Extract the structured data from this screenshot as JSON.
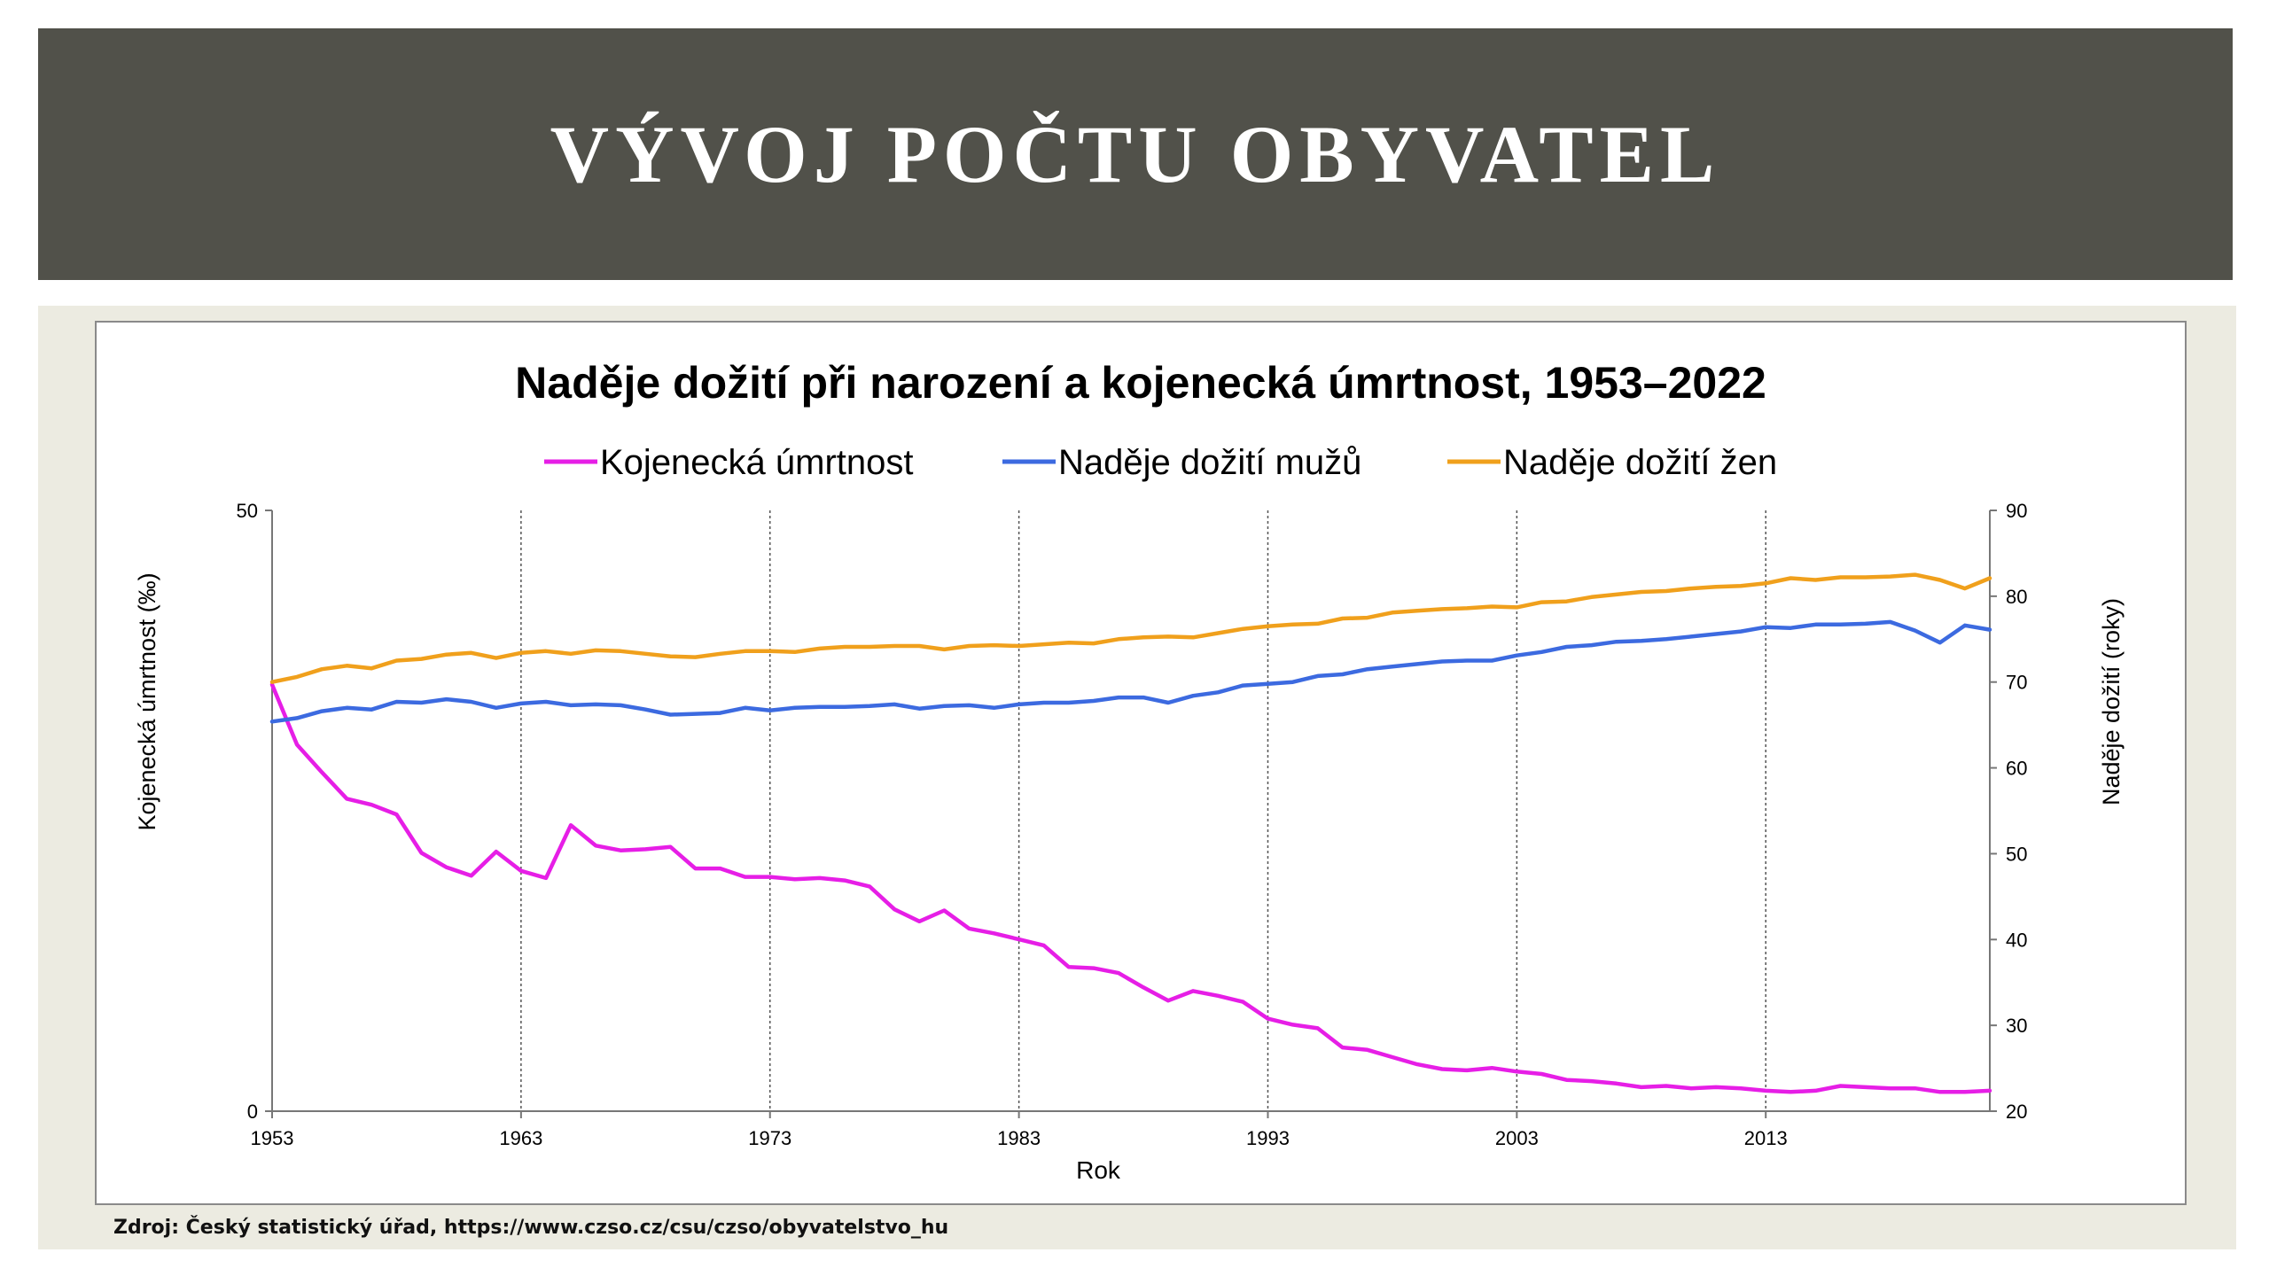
{
  "slide": {
    "title": "VÝVOJ POČTU OBYVATEL",
    "source": "Zdroj: Český statistický úřad, https://www.czso.cz/csu/czso/obyvatelstvo_hu"
  },
  "chart_data": {
    "type": "line",
    "title": "Naděje dožití při narození a kojenecká úmrtnost, 1953–2022",
    "xlabel": "Rok",
    "ylabel_left": "Kojenecká úmrtnost (‰)",
    "ylabel_right": "Naděje dožití (roky)",
    "xlim": [
      1953,
      2022
    ],
    "ylim_left": [
      0,
      50
    ],
    "ylim_right": [
      20,
      90
    ],
    "x_ticks": [
      1953,
      1963,
      1973,
      1983,
      1993,
      2003,
      2013
    ],
    "y_left_ticks": [
      0,
      50
    ],
    "y_right_ticks": [
      20,
      30,
      40,
      50,
      60,
      70,
      80,
      90
    ],
    "vertical_gridlines": [
      1963,
      1973,
      1983,
      1993,
      2003,
      2013
    ],
    "legend_position": "top",
    "x": [
      1953,
      1954,
      1955,
      1956,
      1957,
      1958,
      1959,
      1960,
      1961,
      1962,
      1963,
      1964,
      1965,
      1966,
      1967,
      1968,
      1969,
      1970,
      1971,
      1972,
      1973,
      1974,
      1975,
      1976,
      1977,
      1978,
      1979,
      1980,
      1981,
      1982,
      1983,
      1984,
      1985,
      1986,
      1987,
      1988,
      1989,
      1990,
      1991,
      1992,
      1993,
      1994,
      1995,
      1996,
      1997,
      1998,
      1999,
      2000,
      2001,
      2002,
      2003,
      2004,
      2005,
      2006,
      2007,
      2008,
      2009,
      2010,
      2011,
      2012,
      2013,
      2014,
      2015,
      2016,
      2017,
      2018,
      2019,
      2020,
      2021,
      2022
    ],
    "series": [
      {
        "name": "Kojenecká úmrtnost",
        "axis": "left",
        "color": "#e61ee6",
        "values": [
          35.5,
          30.5,
          28.2,
          26.0,
          25.5,
          24.7,
          21.5,
          20.3,
          19.6,
          21.6,
          20.0,
          19.4,
          23.8,
          22.1,
          21.7,
          21.8,
          22.0,
          20.2,
          20.2,
          19.5,
          19.5,
          19.3,
          19.4,
          19.2,
          18.7,
          16.8,
          15.8,
          16.7,
          15.2,
          14.8,
          14.3,
          13.8,
          12.0,
          11.9,
          11.5,
          10.3,
          9.2,
          10.0,
          9.6,
          9.1,
          7.7,
          7.2,
          6.9,
          5.3,
          5.1,
          4.5,
          3.9,
          3.5,
          3.4,
          3.6,
          3.3,
          3.1,
          2.6,
          2.5,
          2.3,
          2.0,
          2.1,
          1.9,
          2.0,
          1.9,
          1.7,
          1.6,
          1.7,
          2.1,
          2.0,
          1.9,
          1.9,
          1.6,
          1.6,
          1.7
        ]
      },
      {
        "name": "Naděje dožití mužů",
        "axis": "right",
        "color": "#3c6ae0",
        "values": [
          65.4,
          65.8,
          66.6,
          67.0,
          66.8,
          67.7,
          67.6,
          68.0,
          67.7,
          67.0,
          67.5,
          67.7,
          67.3,
          67.4,
          67.3,
          66.8,
          66.2,
          66.3,
          66.4,
          67.0,
          66.7,
          67.0,
          67.1,
          67.1,
          67.2,
          67.4,
          66.9,
          67.2,
          67.3,
          67.0,
          67.4,
          67.6,
          67.6,
          67.8,
          68.2,
          68.2,
          67.6,
          68.4,
          68.8,
          69.6,
          69.8,
          70.0,
          70.7,
          70.9,
          71.5,
          71.8,
          72.1,
          72.4,
          72.5,
          72.5,
          73.1,
          73.5,
          74.1,
          74.3,
          74.7,
          74.8,
          75.0,
          75.3,
          75.6,
          75.9,
          76.4,
          76.3,
          76.7,
          76.7,
          76.8,
          77.0,
          76.0,
          74.6,
          76.6,
          76.1
        ]
      },
      {
        "name": "Naděje dožití žen",
        "axis": "right",
        "color": "#f0a01c",
        "values": [
          70.0,
          70.6,
          71.5,
          71.9,
          71.6,
          72.5,
          72.7,
          73.2,
          73.4,
          72.8,
          73.4,
          73.6,
          73.3,
          73.7,
          73.6,
          73.3,
          73.0,
          72.9,
          73.3,
          73.6,
          73.6,
          73.5,
          73.9,
          74.1,
          74.1,
          74.2,
          74.2,
          73.8,
          74.2,
          74.3,
          74.2,
          74.4,
          74.6,
          74.5,
          75.0,
          75.2,
          75.3,
          75.2,
          75.7,
          76.2,
          76.5,
          76.7,
          76.8,
          77.4,
          77.5,
          78.1,
          78.3,
          78.5,
          78.6,
          78.8,
          78.7,
          79.3,
          79.4,
          79.9,
          80.2,
          80.5,
          80.6,
          80.9,
          81.1,
          81.2,
          81.5,
          82.1,
          81.9,
          82.2,
          82.2,
          82.3,
          82.5,
          81.9,
          80.9,
          82.1
        ]
      }
    ]
  }
}
